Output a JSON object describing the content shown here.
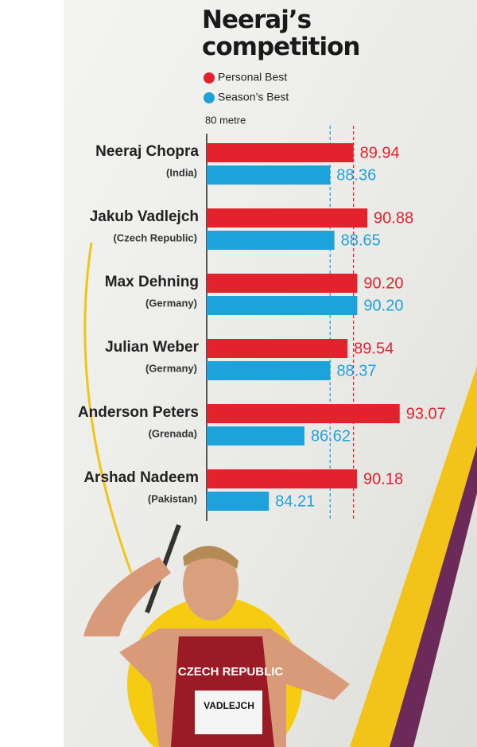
{
  "chart_data": {
    "type": "bar",
    "orientation": "horizontal",
    "title": "Neeraj’s competition",
    "categories": [
      "Neeraj Chopra",
      "Jakub Vadlejch",
      "Max Dehning",
      "Julian Weber",
      "Anderson Peters",
      "Arshad Nadeem"
    ],
    "countries": [
      "(India)",
      "(Czech Republic)",
      "(Germany)",
      "(Germany)",
      "(Grenada)",
      "(Pakistan)"
    ],
    "series": [
      {
        "name": "Personal Best",
        "color": "#e3222d",
        "values": [
          89.94,
          90.88,
          90.2,
          89.54,
          93.07,
          90.18
        ],
        "value_labels": [
          "89.94",
          "90.88",
          "90.20",
          "89.54",
          "93.07",
          "90.18"
        ]
      },
      {
        "name": "Season’s Best",
        "color": "#1ea2dc",
        "values": [
          88.36,
          88.65,
          90.2,
          88.37,
          86.62,
          84.21
        ],
        "value_labels": [
          "88.36",
          "88.65",
          "90.20",
          "88.37",
          "86.62",
          "84.21"
        ]
      }
    ],
    "xlim": [
      80,
      98.2
    ],
    "xticks": [
      {
        "value": 80,
        "label": "80 metre"
      }
    ],
    "reference_lines": true
  },
  "photo": {
    "jersey_text": "CZECH REPUBLIC",
    "bib": "VADLEJCH"
  }
}
